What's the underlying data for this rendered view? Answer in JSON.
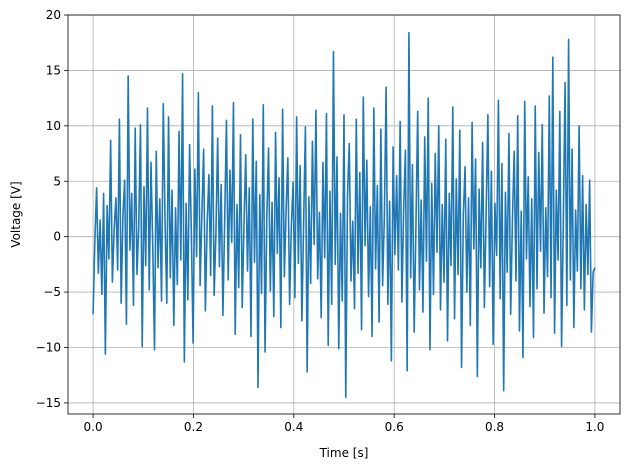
{
  "chart_data": {
    "type": "line",
    "title": "",
    "xlabel": "Time [s]",
    "ylabel": "Voltage [V]",
    "xlim": [
      -0.05,
      1.05
    ],
    "ylim": [
      -16,
      20
    ],
    "x_ticks": [
      0.0,
      0.2,
      0.4,
      0.6,
      0.8,
      1.0
    ],
    "x_tick_labels": [
      "0.0",
      "0.2",
      "0.4",
      "0.6",
      "0.8",
      "1.0"
    ],
    "y_ticks": [
      -15,
      -10,
      -5,
      0,
      5,
      10,
      15,
      20
    ],
    "y_tick_labels": [
      "−15",
      "−10",
      "−5",
      "0",
      "5",
      "10",
      "15",
      "20"
    ],
    "grid": true,
    "series": [
      {
        "color": "#1f77b4",
        "x_start": 0.0,
        "x_end": 1.0,
        "values": [
          -7.0,
          -0.4,
          4.4,
          -3.3,
          1.5,
          -5.2,
          3.9,
          -10.6,
          2.8,
          -2.0,
          8.7,
          -4.1,
          0.6,
          3.5,
          -3.0,
          10.6,
          -6.0,
          1.9,
          5.1,
          -7.9,
          14.5,
          -1.2,
          3.9,
          -6.2,
          9.8,
          -3.4,
          0.8,
          10.1,
          -9.9,
          4.5,
          -2.6,
          11.6,
          -4.8,
          6.7,
          -0.9,
          -10.2,
          7.7,
          -2.8,
          3.4,
          -5.8,
          12.0,
          1.5,
          -6.0,
          10.8,
          -3.7,
          4.2,
          -8.0,
          2.6,
          -4.3,
          9.5,
          -2.1,
          14.7,
          -11.3,
          3.0,
          -5.7,
          8.3,
          0.4,
          -9.6,
          6.1,
          -1.8,
          13.0,
          -4.4,
          2.1,
          7.9,
          -6.7,
          1.1,
          5.6,
          -3.5,
          11.8,
          -5.3,
          0.3,
          8.9,
          -2.7,
          4.7,
          -7.1,
          1.6,
          10.5,
          -3.9,
          6.0,
          -0.5,
          12.1,
          -8.8,
          2.9,
          -4.6,
          9.2,
          -6.4,
          1.2,
          7.4,
          -3.1,
          4.4,
          -9.0,
          10.6,
          -2.3,
          6.8,
          -13.6,
          3.8,
          -5.1,
          11.9,
          -10.4,
          1.7,
          8.0,
          -4.9,
          3.1,
          -7.2,
          9.4,
          -1.5,
          5.3,
          -8.2,
          11.5,
          -3.6,
          2.4,
          7.1,
          -6.1,
          0.9,
          4.9,
          -5.5,
          10.8,
          -2.4,
          6.4,
          -7.6,
          1.3,
          9.9,
          -12.2,
          3.6,
          -4.2,
          8.6,
          -0.7,
          11.4,
          -3.8,
          2.2,
          -7.3,
          6.7,
          -1.9,
          11.1,
          -9.8,
          4.1,
          -6.1,
          16.7,
          -2.5,
          7.2,
          -10.1,
          2.1,
          -5.8,
          11.0,
          -14.5,
          3.7,
          8.4,
          -4.0,
          1.4,
          -6.5,
          10.6,
          -3.3,
          5.8,
          -8.4,
          12.6,
          -0.8,
          6.9,
          -5.4,
          2.7,
          -9.0,
          11.6,
          -2.9,
          4.6,
          -7.7,
          9.7,
          -4.4,
          1.8,
          13.5,
          -6.1,
          3.2,
          -11.2,
          8.1,
          -1.6,
          5.5,
          -3.0,
          10.4,
          -5.9,
          2.5,
          7.8,
          -12.1,
          18.4,
          -3.7,
          6.5,
          -8.6,
          1.0,
          11.3,
          -4.8,
          3.3,
          -6.8,
          9.0,
          -2.2,
          12.5,
          -10.2,
          4.8,
          -5.2,
          7.5,
          -1.4,
          10.0,
          -6.6,
          2.9,
          -4.1,
          8.8,
          -9.4,
          3.9,
          -2.6,
          11.7,
          -7.4,
          5.2,
          -3.4,
          9.6,
          -11.8,
          1.9,
          6.3,
          -5.0,
          3.5,
          -8.0,
          10.3,
          -1.1,
          7.0,
          -12.6,
          4.3,
          -2.8,
          8.5,
          -6.4,
          2.0,
          11.0,
          -4.5,
          5.9,
          -9.7,
          3.0,
          -1.7,
          12.3,
          -5.6,
          6.6,
          -13.9,
          4.0,
          -3.2,
          9.3,
          -7.0,
          1.6,
          7.7,
          -4.0,
          10.9,
          -8.5,
          2.3,
          -10.9,
          12.2,
          -2.0,
          5.4,
          -6.3,
          3.4,
          -9.1,
          11.8,
          -4.7,
          7.6,
          -1.3,
          10.1,
          -6.9,
          2.6,
          -3.6,
          12.7,
          -5.5,
          16.2,
          -8.7,
          4.2,
          -2.1,
          11.3,
          -9.9,
          1.5,
          13.9,
          -6.2,
          17.8,
          -3.9,
          7.9,
          -8.2,
          2.4,
          -3.1,
          10.0,
          -4.7,
          5.5,
          -6.6,
          2.9,
          -3.4,
          5.1,
          -8.6,
          -3.2,
          -2.8
        ]
      }
    ]
  }
}
